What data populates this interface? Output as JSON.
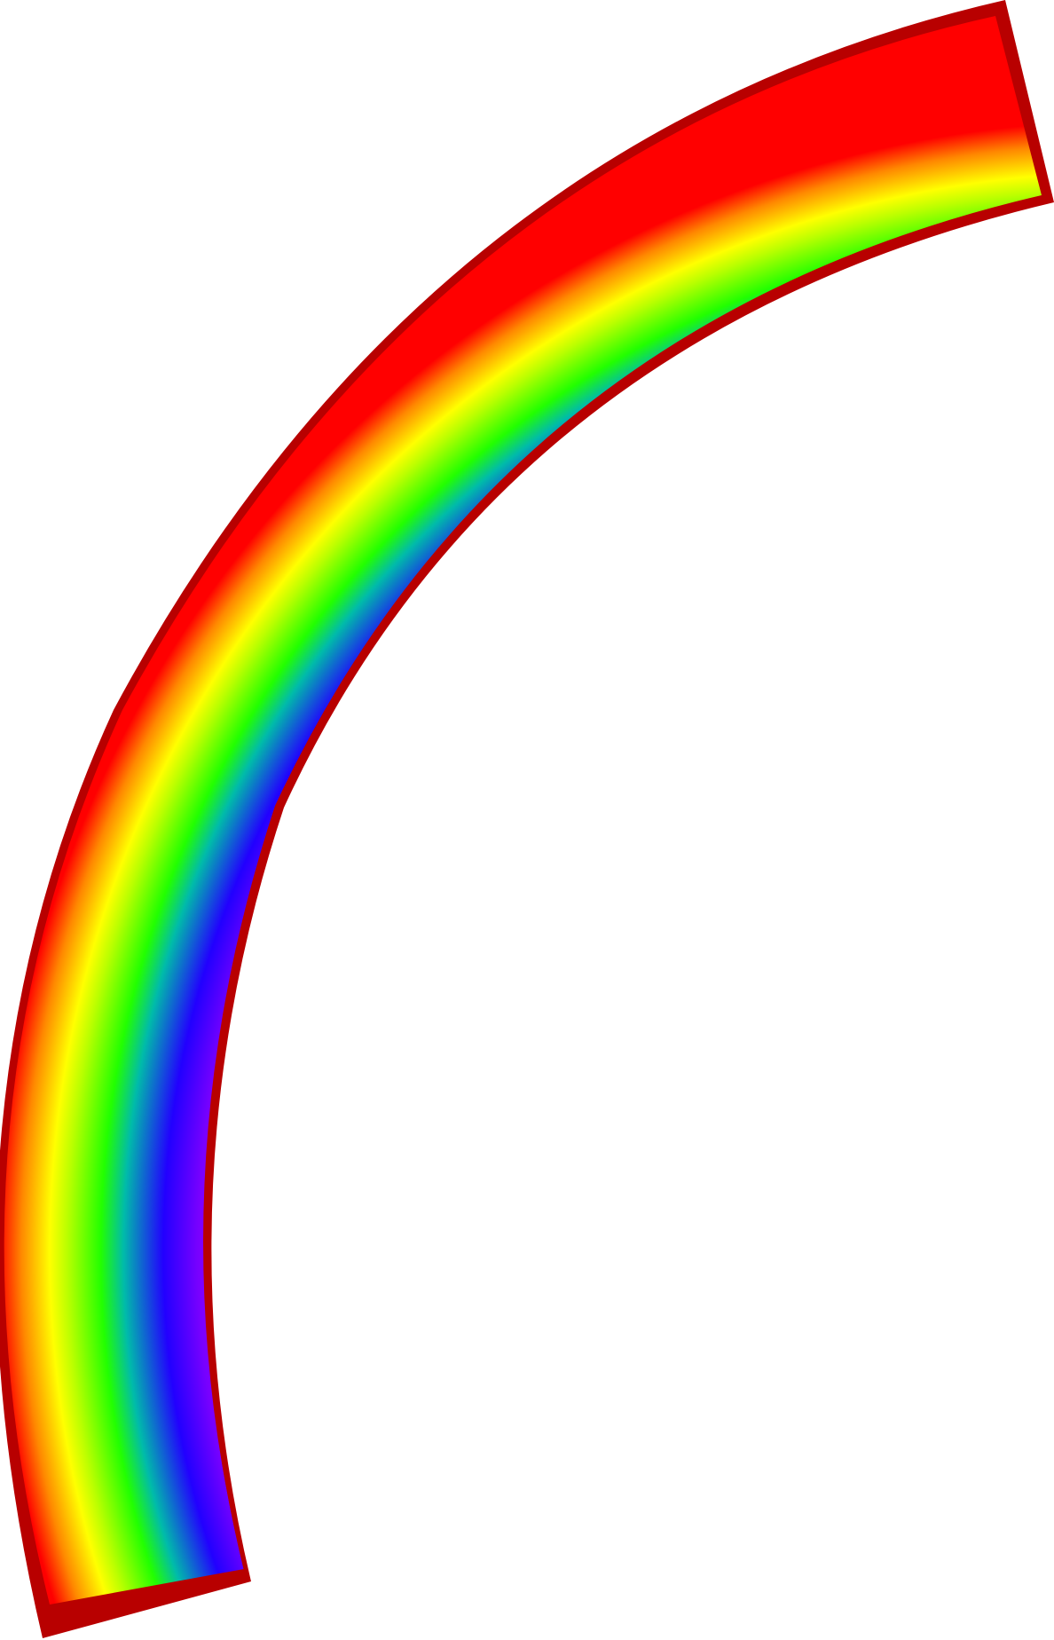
{
  "illustration": {
    "subject": "rainbow-arc",
    "background_color": "#ffffff",
    "outline_color": "#b80000",
    "bands": [
      {
        "name": "red",
        "color": "#ff0000"
      },
      {
        "name": "orange",
        "color": "#ff9900"
      },
      {
        "name": "yellow",
        "color": "#ffff00"
      },
      {
        "name": "green",
        "color": "#22ff00"
      },
      {
        "name": "blue",
        "color": "#2200ff"
      },
      {
        "name": "violet",
        "color": "#bb00ff"
      }
    ]
  }
}
